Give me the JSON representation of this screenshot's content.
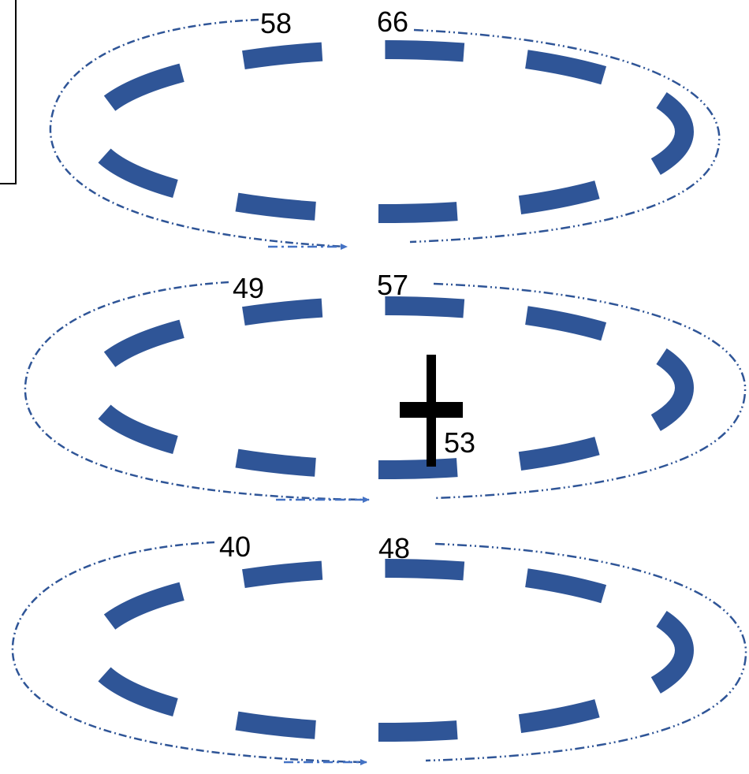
{
  "colors": {
    "ring_dash": "#2F5597",
    "path_line": "#2F5597",
    "arrow": "#4472C4",
    "cross": "#000000",
    "frame": "#000000"
  },
  "rings": [
    {
      "start_label": "58",
      "end_label": "66"
    },
    {
      "start_label": "49",
      "end_label": "57"
    },
    {
      "start_label": "40",
      "end_label": "48"
    }
  ],
  "cross": {
    "label": "53"
  }
}
